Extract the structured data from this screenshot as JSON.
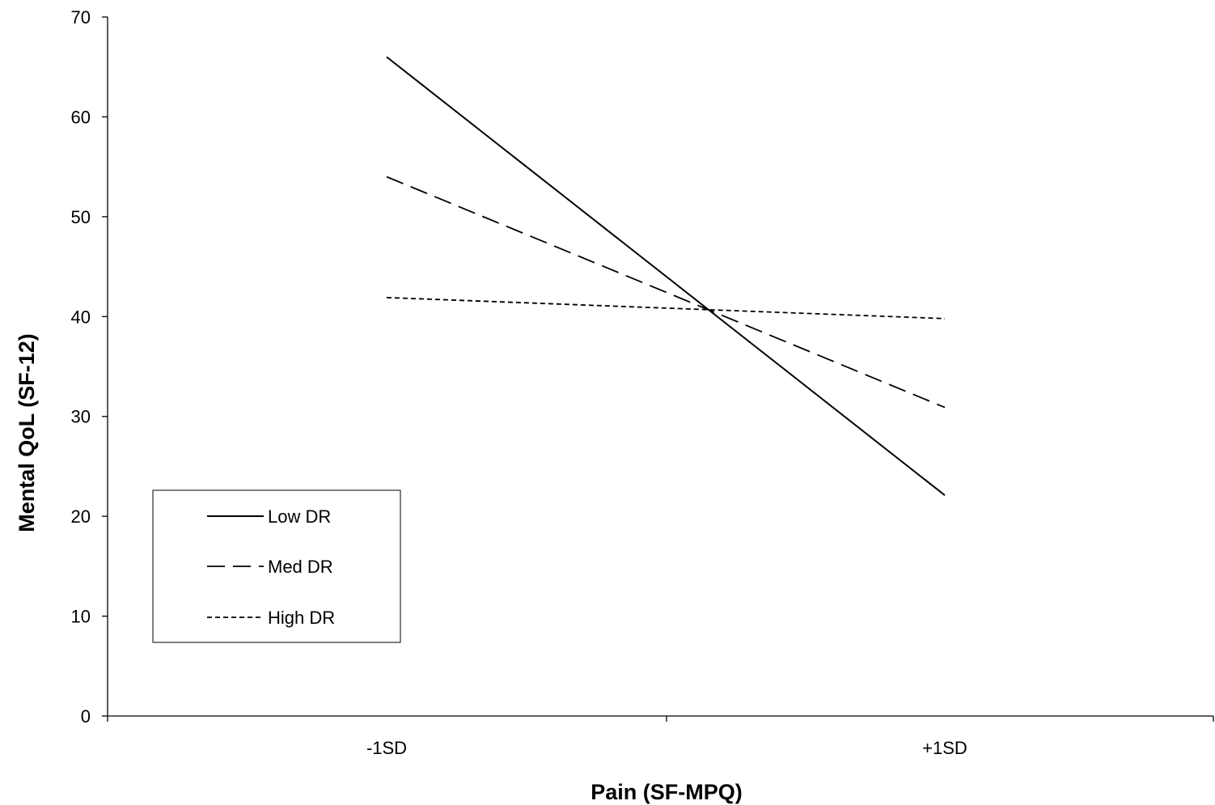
{
  "chart_data": {
    "type": "line",
    "title": "",
    "xlabel": "Pain (SF-MPQ)",
    "ylabel": "Mental QoL (SF-12)",
    "categories": [
      "-1SD",
      "+1SD"
    ],
    "ylim": [
      0,
      70
    ],
    "yticks": [
      "0",
      "10",
      "20",
      "30",
      "40",
      "50",
      "60",
      "70"
    ],
    "grid": false,
    "legend_position": "bottom-left",
    "series": [
      {
        "name": "Low DR",
        "values": [
          66,
          22.1
        ],
        "style": "solid",
        "color": "#000000"
      },
      {
        "name": "Med DR",
        "values": [
          54,
          30.9
        ],
        "style": "dashed",
        "color": "#000000"
      },
      {
        "name": "High DR",
        "values": [
          41.9,
          39.8
        ],
        "style": "dotted",
        "color": "#000000"
      }
    ]
  }
}
